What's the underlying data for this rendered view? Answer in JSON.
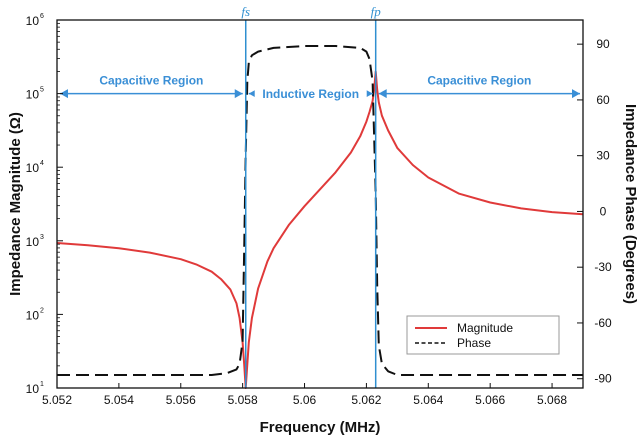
{
  "colors": {
    "magnitude": "#e03a3a",
    "phase": "#111111",
    "marker": "#2f8fd0",
    "arrow": "#3a8fd6",
    "axis": "#111111"
  },
  "chart_data": {
    "type": "line",
    "xlabel": "Frequency (MHz)",
    "ylabel_left": "Impedance Magnitude (Ω)",
    "ylabel_right": "Impedance Phase (Degrees)",
    "xlim": [
      5.052,
      5.069
    ],
    "ylim_left_log10": [
      1,
      6
    ],
    "ylim_right": [
      -95,
      103
    ],
    "x_ticks": [
      {
        "value": 5.052,
        "label": "5.052"
      },
      {
        "value": 5.054,
        "label": "5.054"
      },
      {
        "value": 5.056,
        "label": "5.056"
      },
      {
        "value": 5.058,
        "label": "5.058"
      },
      {
        "value": 5.06,
        "label": "5.06"
      },
      {
        "value": 5.062,
        "label": "5.062"
      },
      {
        "value": 5.064,
        "label": "5.064"
      },
      {
        "value": 5.066,
        "label": "5.066"
      },
      {
        "value": 5.068,
        "label": "5.068"
      }
    ],
    "y_left_ticks": [
      {
        "exp": 1,
        "base": "10",
        "sup": "1"
      },
      {
        "exp": 2,
        "base": "10",
        "sup": "2"
      },
      {
        "exp": 3,
        "base": "10",
        "sup": "3"
      },
      {
        "exp": 4,
        "base": "10",
        "sup": "4"
      },
      {
        "exp": 5,
        "base": "10",
        "sup": "5"
      },
      {
        "exp": 6,
        "base": "10",
        "sup": "6"
      }
    ],
    "y_right_ticks": [
      {
        "value": 90,
        "label": "90"
      },
      {
        "value": 60,
        "label": "60"
      },
      {
        "value": 30,
        "label": "30"
      },
      {
        "value": 0,
        "label": "0"
      },
      {
        "value": -30,
        "label": "-30"
      },
      {
        "value": -60,
        "label": "-60"
      },
      {
        "value": -90,
        "label": "-90"
      }
    ],
    "markers": [
      {
        "name": "fs",
        "label": "fs",
        "x": 5.0581
      },
      {
        "name": "fp",
        "label": "fp",
        "x": 5.0623
      }
    ],
    "regions": [
      {
        "name": "capacitive-left",
        "label": "Capacitive Region",
        "x_start": 5.052,
        "x_end": 5.0581
      },
      {
        "name": "inductive",
        "label": "Inductive Region",
        "x_start": 5.0581,
        "x_end": 5.0623
      },
      {
        "name": "capacitive-right",
        "label": "Capacitive Region",
        "x_start": 5.0623,
        "x_end": 5.069
      }
    ],
    "region_arrow_level_log10": 5,
    "series": [
      {
        "name": "Magnitude",
        "axis": "left",
        "style": "solid",
        "x": [
          5.052,
          5.053,
          5.054,
          5.055,
          5.056,
          5.0565,
          5.057,
          5.0573,
          5.0576,
          5.0578,
          5.0579,
          5.058,
          5.05805,
          5.0581,
          5.05815,
          5.0582,
          5.0583,
          5.0585,
          5.0588,
          5.059,
          5.0595,
          5.06,
          5.0605,
          5.061,
          5.0615,
          5.0618,
          5.062,
          5.0621,
          5.0622,
          5.06225,
          5.0623,
          5.06235,
          5.0624,
          5.0625,
          5.0627,
          5.063,
          5.0635,
          5.064,
          5.065,
          5.066,
          5.067,
          5.068,
          5.069
        ],
        "y_log10": [
          2.97,
          2.94,
          2.9,
          2.84,
          2.75,
          2.68,
          2.58,
          2.48,
          2.34,
          2.15,
          1.95,
          1.62,
          1.32,
          1.0,
          1.32,
          1.62,
          1.95,
          2.35,
          2.72,
          2.9,
          3.22,
          3.47,
          3.7,
          3.93,
          4.2,
          4.42,
          4.62,
          4.75,
          4.9,
          5.05,
          5.3,
          5.05,
          4.88,
          4.7,
          4.5,
          4.26,
          4.03,
          3.86,
          3.64,
          3.52,
          3.44,
          3.39,
          3.36
        ]
      },
      {
        "name": "Phase",
        "axis": "right",
        "style": "dashed",
        "x": [
          5.052,
          5.057,
          5.0575,
          5.0578,
          5.0579,
          5.058,
          5.05805,
          5.0581,
          5.05815,
          5.0582,
          5.0583,
          5.0585,
          5.059,
          5.06,
          5.061,
          5.0618,
          5.062,
          5.0621,
          5.0622,
          5.0623,
          5.06235,
          5.0624,
          5.0625,
          5.0627,
          5.063,
          5.065,
          5.069
        ],
        "y": [
          -88,
          -88,
          -87,
          -85,
          -82,
          -70,
          -20,
          30,
          70,
          80,
          84,
          86,
          88,
          89,
          89,
          88,
          86,
          82,
          70,
          10,
          -40,
          -72,
          -82,
          -86,
          -88,
          -88,
          -88
        ]
      }
    ],
    "legend": {
      "placement": "bottom-right",
      "entries": [
        {
          "label": "Magnitude",
          "series": "Magnitude"
        },
        {
          "label": "Phase",
          "series": "Phase"
        }
      ]
    }
  }
}
